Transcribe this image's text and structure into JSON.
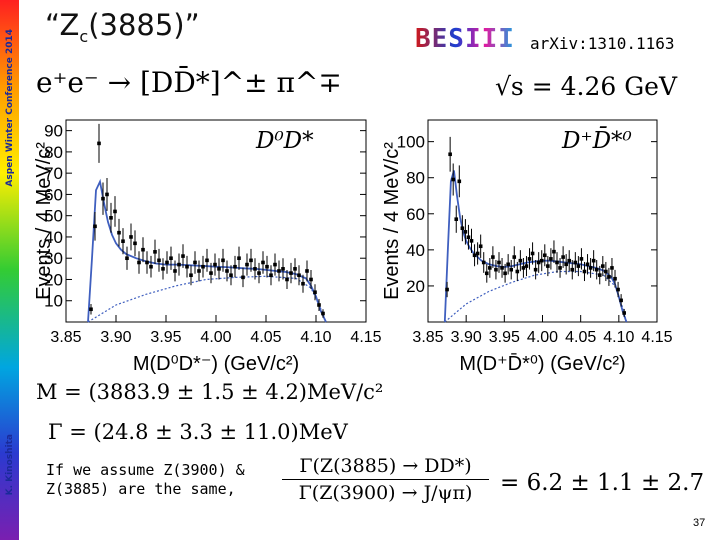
{
  "sidebar": {
    "conference": "Aspen Winter Conference 2014",
    "author": "K. Kinoshita"
  },
  "slide": {
    "title_main": "“Z",
    "title_sub": "c",
    "title_end": "(3885)”",
    "logo": "BESIII",
    "arxiv": "arXiv:1310.1163",
    "reaction": "e⁺e⁻ → [DD̄*]^± π^∓",
    "energy": "√s = 4.26 GeV",
    "mass_result": "M = (3883.9 ± 1.5 ± 4.2)MeV/c²",
    "width_result": "Γ = (24.8 ± 3.3 ± 11.0)MeV",
    "note_line1": "If we assume Z(3900) &",
    "note_line2": "Z(3885) are the same,",
    "ratio_numerator": "Γ(Z(3885) → DD*)",
    "ratio_denominator": "Γ(Z(3900) → J/ψπ)",
    "ratio_value": "= 6.2 ± 1.1 ± 2.7",
    "page_number": "37"
  },
  "colors": {
    "fit_line": "#3f5fbf",
    "points": "#000000"
  },
  "chart_data": [
    {
      "type": "scatter",
      "title": "",
      "label": "D⁰D*",
      "xlabel": "M(D⁰D*⁻) (GeV/c²)",
      "ylabel": "Events / 4 MeV/c²",
      "xlim": [
        3.85,
        4.15
      ],
      "ylim": [
        0,
        95
      ],
      "xticks": [
        "3.85",
        "3.90",
        "3.95",
        "4.00",
        "4.05",
        "4.10",
        "4.15"
      ],
      "xtick_values": [
        3.85,
        3.9,
        3.95,
        4.0,
        4.05,
        4.1,
        4.15
      ],
      "yticks": [
        10,
        20,
        30,
        40,
        50,
        60,
        70,
        80,
        90
      ],
      "x": [
        3.875,
        3.879,
        3.883,
        3.887,
        3.891,
        3.895,
        3.899,
        3.903,
        3.907,
        3.911,
        3.915,
        3.919,
        3.923,
        3.927,
        3.931,
        3.935,
        3.939,
        3.943,
        3.947,
        3.951,
        3.955,
        3.959,
        3.963,
        3.967,
        3.971,
        3.975,
        3.979,
        3.983,
        3.987,
        3.991,
        3.995,
        3.999,
        4.003,
        4.007,
        4.011,
        4.015,
        4.019,
        4.023,
        4.027,
        4.031,
        4.035,
        4.039,
        4.043,
        4.047,
        4.051,
        4.055,
        4.059,
        4.063,
        4.067,
        4.071,
        4.075,
        4.079,
        4.083,
        4.087,
        4.091,
        4.095,
        4.099,
        4.103,
        4.107
      ],
      "values": [
        6,
        45,
        84,
        58,
        60,
        49,
        52,
        42,
        38,
        30,
        40,
        37,
        28,
        34,
        28,
        26,
        33,
        29,
        25,
        28,
        30,
        24,
        27,
        31,
        26,
        22,
        28,
        24,
        26,
        29,
        23,
        27,
        25,
        29,
        24,
        22,
        26,
        30,
        21,
        27,
        29,
        25,
        23,
        28,
        26,
        22,
        27,
        24,
        25,
        20,
        23,
        25,
        22,
        18,
        24,
        20,
        14,
        8,
        4
      ],
      "fit_x": [
        3.872,
        3.876,
        3.88,
        3.884,
        3.888,
        3.892,
        3.896,
        3.9,
        3.905,
        3.91,
        3.92,
        3.93,
        3.94,
        3.95,
        3.96,
        3.97,
        3.98,
        3.99,
        4.0,
        4.01,
        4.02,
        4.03,
        4.04,
        4.05,
        4.06,
        4.07,
        4.08,
        4.09,
        4.095,
        4.1,
        4.105,
        4.11
      ],
      "fit_y": [
        0,
        30,
        62,
        66,
        56,
        47,
        41,
        37,
        34,
        32,
        30,
        28.5,
        27.5,
        27,
        27,
        26.8,
        26.5,
        26.3,
        26,
        25.8,
        25.5,
        25.2,
        25,
        24.5,
        24,
        23.5,
        22.5,
        20.5,
        17,
        12,
        5,
        0
      ],
      "bkg_x": [
        3.872,
        3.9,
        3.93,
        3.96,
        3.99,
        4.02,
        4.05,
        4.08,
        4.095,
        4.105,
        4.11
      ],
      "bkg_y": [
        0,
        8,
        13,
        17,
        20,
        21,
        21.5,
        20.5,
        16,
        6,
        0
      ]
    },
    {
      "type": "scatter",
      "title": "",
      "label": "D⁺D̄*⁰",
      "xlabel": "M(D⁺D̄*⁰) (GeV/c²)",
      "ylabel": "Events / 4 MeV/c²",
      "xlim": [
        3.85,
        4.15
      ],
      "ylim": [
        0,
        112
      ],
      "xticks": [
        "3.85",
        "3.90",
        "3.95",
        "4.00",
        "4.05",
        "4.10",
        "4.15"
      ],
      "xtick_values": [
        3.85,
        3.9,
        3.95,
        4.0,
        4.05,
        4.1,
        4.15
      ],
      "yticks": [
        20,
        40,
        60,
        80,
        100
      ],
      "x": [
        3.875,
        3.879,
        3.883,
        3.887,
        3.891,
        3.895,
        3.899,
        3.903,
        3.907,
        3.911,
        3.915,
        3.919,
        3.923,
        3.927,
        3.931,
        3.935,
        3.939,
        3.943,
        3.947,
        3.951,
        3.955,
        3.959,
        3.963,
        3.967,
        3.971,
        3.975,
        3.979,
        3.983,
        3.987,
        3.991,
        3.995,
        3.999,
        4.003,
        4.007,
        4.011,
        4.015,
        4.019,
        4.023,
        4.027,
        4.031,
        4.035,
        4.039,
        4.043,
        4.047,
        4.051,
        4.055,
        4.059,
        4.063,
        4.067,
        4.071,
        4.075,
        4.079,
        4.083,
        4.087,
        4.091,
        4.095,
        4.099,
        4.103,
        4.107
      ],
      "values": [
        18,
        93,
        79,
        57,
        78,
        52,
        50,
        47,
        45,
        37,
        38,
        42,
        33,
        27,
        30,
        36,
        29,
        33,
        30,
        27,
        32,
        29,
        36,
        28,
        34,
        30,
        31,
        35,
        38,
        29,
        33,
        34,
        37,
        31,
        35,
        39,
        33,
        30,
        36,
        32,
        34,
        29,
        33,
        31,
        35,
        28,
        32,
        30,
        34,
        29,
        26,
        31,
        28,
        25,
        30,
        24,
        18,
        12,
        5
      ],
      "fit_x": [
        3.872,
        3.876,
        3.88,
        3.884,
        3.888,
        3.892,
        3.896,
        3.9,
        3.905,
        3.91,
        3.92,
        3.93,
        3.94,
        3.95,
        3.96,
        3.97,
        3.98,
        3.99,
        4.0,
        4.01,
        4.02,
        4.03,
        4.04,
        4.05,
        4.06,
        4.07,
        4.08,
        4.09,
        4.095,
        4.1,
        4.105,
        4.11
      ],
      "fit_y": [
        0,
        40,
        78,
        84,
        70,
        58,
        50,
        45,
        41,
        38,
        34,
        32,
        31,
        30.5,
        31,
        32,
        33,
        33.5,
        34,
        34,
        33.5,
        33,
        32.5,
        32,
        31,
        30,
        28.5,
        25,
        21,
        14,
        6,
        0
      ],
      "bkg_x": [
        3.872,
        3.9,
        3.93,
        3.96,
        3.99,
        4.02,
        4.05,
        4.08,
        4.095,
        4.105,
        4.11
      ],
      "bkg_y": [
        0,
        10,
        17,
        22,
        26,
        28,
        28,
        26,
        20,
        8,
        0
      ]
    }
  ]
}
